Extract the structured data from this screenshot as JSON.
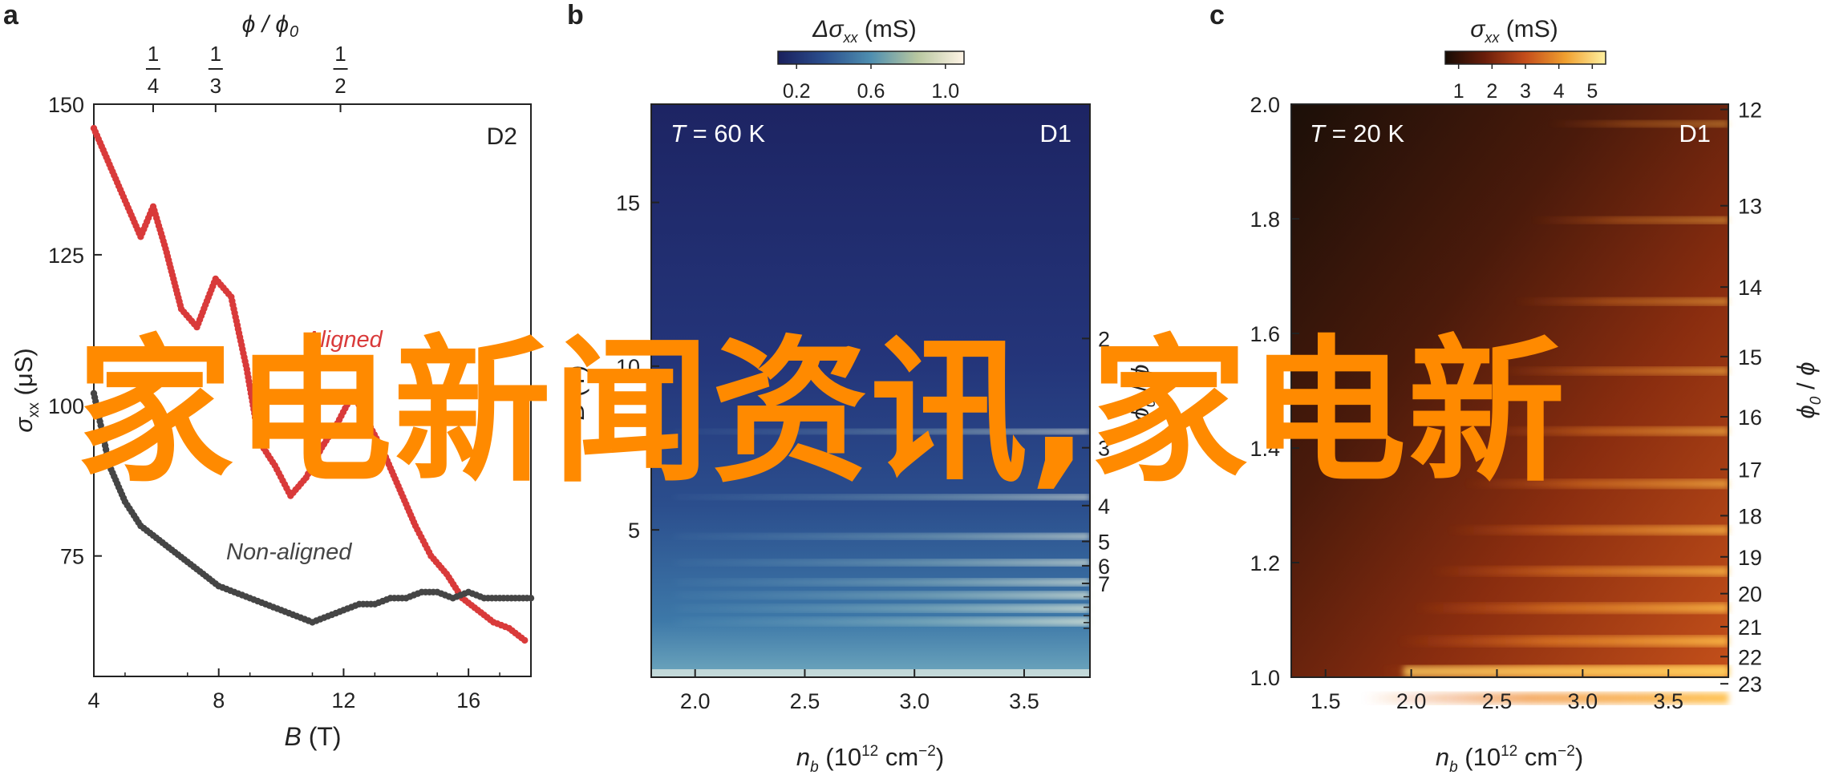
{
  "watermark": "家电新闻资讯,家电新",
  "chart_data": [
    {
      "panel_label": "a",
      "type": "scatter",
      "device_label": "D2",
      "xlabel_sym": "B",
      "xlabel_unit": "(T)",
      "ylabel_sym": "σ",
      "ylabel_sub": "xx",
      "ylabel_unit": "(μS)",
      "top_axis_label": "ϕ / ϕ",
      "top_axis_sub": "0",
      "top_ticks": [
        {
          "num": "1",
          "den": "4",
          "x": 5.9
        },
        {
          "num": "1",
          "den": "3",
          "x": 7.9
        },
        {
          "num": "1",
          "den": "2",
          "x": 11.9
        }
      ],
      "xlim": [
        4,
        18
      ],
      "ylim": [
        55,
        150
      ],
      "xticks": [
        4,
        8,
        12,
        16
      ],
      "yticks": [
        75,
        100,
        125,
        150
      ],
      "series": [
        {
          "name": "Aligned",
          "color": "#d93a3a",
          "x": [
            4.0,
            4.5,
            5.0,
            5.5,
            5.9,
            6.3,
            6.8,
            7.3,
            7.9,
            8.4,
            8.9,
            9.3,
            9.8,
            10.3,
            10.8,
            11.3,
            11.8,
            12.3,
            12.8,
            13.3,
            13.8,
            14.3,
            14.8,
            15.3,
            15.8,
            16.3,
            16.8,
            17.3,
            17.8
          ],
          "y": [
            146,
            140,
            134,
            128,
            133,
            126,
            116,
            113,
            121,
            118,
            106,
            94,
            90,
            85,
            88,
            93,
            97,
            102,
            97,
            92,
            86,
            80,
            75,
            72,
            68,
            66,
            64,
            63,
            61
          ]
        },
        {
          "name": "Non-aligned",
          "color": "#454545",
          "x": [
            4.0,
            4.5,
            5.0,
            5.5,
            6.0,
            6.5,
            7.0,
            7.5,
            8.0,
            8.5,
            9.0,
            9.5,
            10.0,
            10.5,
            11.0,
            11.5,
            12.0,
            12.5,
            13.0,
            13.5,
            14.0,
            14.5,
            15.0,
            15.5,
            16.0,
            16.5,
            17.0,
            17.5,
            18.0
          ],
          "y": [
            102,
            90,
            84,
            80,
            78,
            76,
            74,
            72,
            70,
            69,
            68,
            67,
            66,
            65,
            64,
            65,
            66,
            67,
            67,
            68,
            68,
            69,
            69,
            68,
            69,
            68,
            68,
            68,
            68
          ]
        }
      ]
    },
    {
      "panel_label": "b",
      "type": "heatmap",
      "annotation_sym": "T",
      "annotation_value": "= 60 K",
      "device_label": "D1",
      "colorbar_label_sym": "Δσ",
      "colorbar_label_sub": "xx",
      "colorbar_label_unit": "(mS)",
      "colorbar_ticks": [
        "0.2",
        "0.6",
        "1.0"
      ],
      "colorbar_range": [
        0.1,
        1.1
      ],
      "xlabel_sym": "n",
      "xlabel_sub": "b",
      "xlabel_unit": "(10",
      "xlabel_exp": "12",
      "xlabel_unit2": "cm",
      "xlabel_exp2": "−2",
      "xlabel_close": ")",
      "ylabel_sym": "B",
      "ylabel_unit": "(T)",
      "right_axis_label": "ϕ",
      "right_axis_sub": "0",
      "right_axis_mid": " / ",
      "right_axis_label2": "ϕ",
      "xlim": [
        1.8,
        3.8
      ],
      "ylim": [
        0.5,
        18.0
      ],
      "xticks": [
        "2.0",
        "2.5",
        "3.0",
        "3.5"
      ],
      "yticks": [
        "5",
        "10",
        "15"
      ],
      "right_ticks": [
        "2",
        "3",
        "4",
        "5",
        "6",
        "7"
      ],
      "bands_B": [
        8.0,
        6.0,
        4.8,
        4.0,
        3.4,
        3.0,
        2.6,
        2.2
      ]
    },
    {
      "panel_label": "c",
      "type": "heatmap",
      "annotation_sym": "T",
      "annotation_value": "= 20 K",
      "device_label": "D1",
      "colorbar_label_sym": "σ",
      "colorbar_label_sub": "xx",
      "colorbar_label_unit": "(mS)",
      "colorbar_ticks": [
        "1",
        "2",
        "3",
        "4",
        "5"
      ],
      "colorbar_range": [
        0.6,
        5.4
      ],
      "xlabel_sym": "n",
      "xlabel_sub": "b",
      "xlabel_unit": "(10",
      "xlabel_exp": "12",
      "xlabel_unit2": "cm",
      "xlabel_exp2": "−2",
      "xlabel_close": ")",
      "ylabel_sym": "",
      "right_axis_label": "ϕ",
      "right_axis_sub": "0",
      "right_axis_mid": " / ",
      "right_axis_label2": "ϕ",
      "xlim": [
        1.3,
        3.85
      ],
      "ylim": [
        1.0,
        2.0
      ],
      "xticks": [
        "1.5",
        "2.0",
        "2.5",
        "3.0",
        "3.5"
      ],
      "yticks": [
        "1.0",
        "1.2",
        "1.4",
        "1.6",
        "1.8",
        "2.0"
      ],
      "right_ticks": [
        "12",
        "13",
        "14",
        "15",
        "16",
        "17",
        "18",
        "19",
        "20",
        "21",
        "22",
        "23"
      ]
    }
  ]
}
